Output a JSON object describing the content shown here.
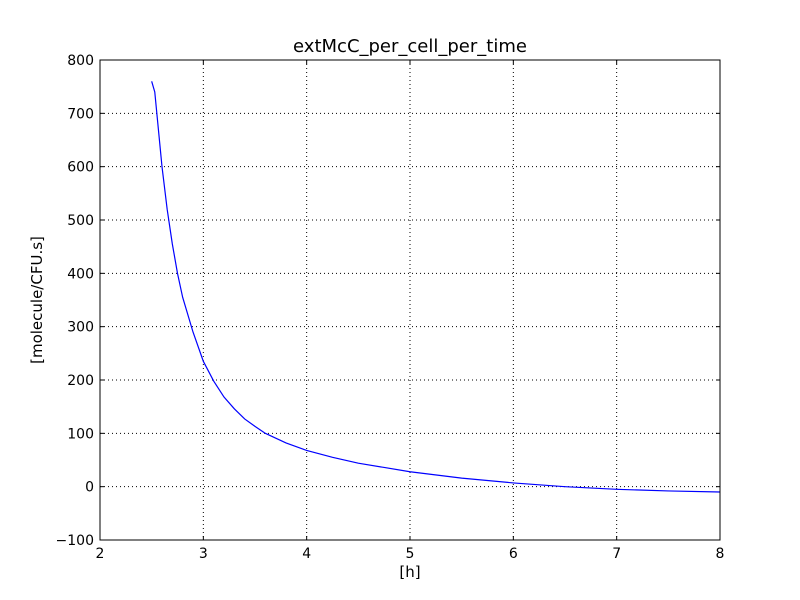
{
  "chart_data": {
    "type": "line",
    "title": "extMcC_per_cell_per_time",
    "xlabel": "[h]",
    "ylabel": "[molecule/CFU.s]",
    "xlim": [
      2,
      8
    ],
    "ylim": [
      -100,
      800
    ],
    "x_ticks": [
      2,
      3,
      4,
      5,
      6,
      7,
      8
    ],
    "x_tick_labels": [
      "2",
      "3",
      "4",
      "5",
      "6",
      "7",
      "8"
    ],
    "y_ticks": [
      -100,
      0,
      100,
      200,
      300,
      400,
      500,
      600,
      700,
      800
    ],
    "y_tick_labels": [
      "−100",
      "0",
      "100",
      "200",
      "300",
      "400",
      "500",
      "600",
      "700",
      "800"
    ],
    "grid": true,
    "legend": "none",
    "series": [
      {
        "color": "#0000ff",
        "x": [
          2.5,
          2.53,
          2.56,
          2.6,
          2.65,
          2.7,
          2.75,
          2.8,
          2.9,
          3.0,
          3.1,
          3.2,
          3.3,
          3.4,
          3.5,
          3.6,
          3.8,
          4.0,
          4.25,
          4.5,
          4.75,
          5.0,
          5.5,
          6.0,
          6.5,
          7.0,
          7.5,
          8.0
        ],
        "y": [
          760,
          740,
          680,
          600,
          520,
          455,
          400,
          355,
          290,
          235,
          198,
          168,
          146,
          127,
          113,
          100,
          82,
          68,
          55,
          44,
          36,
          28,
          16,
          7,
          0,
          -5,
          -8,
          -10
        ]
      }
    ]
  }
}
